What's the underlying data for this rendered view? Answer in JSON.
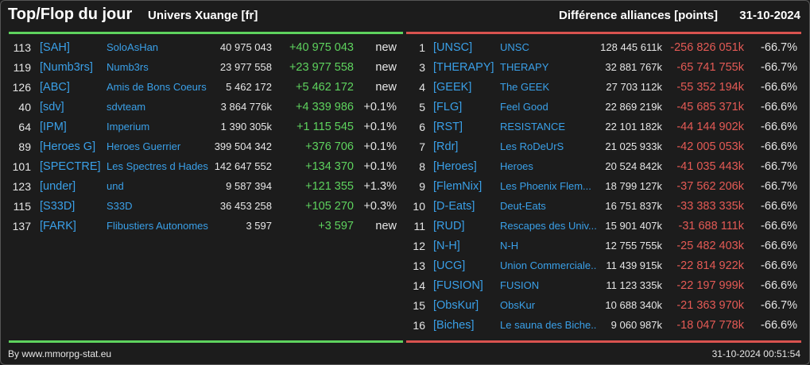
{
  "header": {
    "title": "Top/Flop du jour",
    "universe": "Univers Xuange [fr]",
    "subtitle": "Différence alliances [points]",
    "date": "31-10-2024"
  },
  "colors": {
    "top_accent": "#5ed35e",
    "flop_accent": "#d9534f",
    "link": "#3aa0e8"
  },
  "top": [
    {
      "rank": "113",
      "tag": "[SAH]",
      "name": "SoloAsHan",
      "points": "40 975 043",
      "diff": "+40 975 043",
      "pct": "new"
    },
    {
      "rank": "119",
      "tag": "[Numb3rs]",
      "name": "Numb3rs",
      "points": "23 977 558",
      "diff": "+23 977 558",
      "pct": "new"
    },
    {
      "rank": "126",
      "tag": "[ABC]",
      "name": "Amis de Bons Coeurs",
      "points": "5 462 172",
      "diff": "+5 462 172",
      "pct": "new"
    },
    {
      "rank": "40",
      "tag": "[sdv]",
      "name": "sdvteam",
      "points": "3 864 776k",
      "diff": "+4 339 986",
      "pct": "+0.1%"
    },
    {
      "rank": "64",
      "tag": "[IPM]",
      "name": "Imperium",
      "points": "1 390 305k",
      "diff": "+1 115 545",
      "pct": "+0.1%"
    },
    {
      "rank": "89",
      "tag": "[Heroes G]",
      "name": "Heroes Guerrier",
      "points": "399 504 342",
      "diff": "+376 706",
      "pct": "+0.1%"
    },
    {
      "rank": "101",
      "tag": "[SPECTRE]",
      "name": "Les Spectres d Hades",
      "points": "142 647 552",
      "diff": "+134 370",
      "pct": "+0.1%"
    },
    {
      "rank": "123",
      "tag": "[under]",
      "name": "und",
      "points": "9 587 394",
      "diff": "+121 355",
      "pct": "+1.3%"
    },
    {
      "rank": "115",
      "tag": "[S33D]",
      "name": "S33D",
      "points": "36 453 258",
      "diff": "+105 270",
      "pct": "+0.3%"
    },
    {
      "rank": "137",
      "tag": "[FARK]",
      "name": "Flibustiers Autonomes",
      "points": "3 597",
      "diff": "+3 597",
      "pct": "new"
    }
  ],
  "flop": [
    {
      "rank": "1",
      "tag": "[UNSC]",
      "name": "UNSC",
      "points": "128 445 611k",
      "diff": "-256 826 051k",
      "pct": "-66.7%"
    },
    {
      "rank": "3",
      "tag": "[THERAPY]",
      "name": "THERAPY",
      "points": "32 881 767k",
      "diff": "-65 741 755k",
      "pct": "-66.7%"
    },
    {
      "rank": "4",
      "tag": "[GEEK]",
      "name": "The GEEK",
      "points": "27 703 112k",
      "diff": "-55 352 194k",
      "pct": "-66.6%"
    },
    {
      "rank": "5",
      "tag": "[FLG]",
      "name": "Feel Good",
      "points": "22 869 219k",
      "diff": "-45 685 371k",
      "pct": "-66.6%"
    },
    {
      "rank": "6",
      "tag": "[RST]",
      "name": "RESISTANCE",
      "points": "22 101 182k",
      "diff": "-44 144 902k",
      "pct": "-66.6%"
    },
    {
      "rank": "7",
      "tag": "[Rdr]",
      "name": "Les RoDeUrS",
      "points": "21 025 933k",
      "diff": "-42 005 053k",
      "pct": "-66.6%"
    },
    {
      "rank": "8",
      "tag": "[Heroes]",
      "name": "Heroes",
      "points": "20 524 842k",
      "diff": "-41 035 443k",
      "pct": "-66.7%"
    },
    {
      "rank": "9",
      "tag": "[FlemNix]",
      "name": "Les Phoenix Flem...",
      "points": "18 799 127k",
      "diff": "-37 562 206k",
      "pct": "-66.7%"
    },
    {
      "rank": "10",
      "tag": "[D-Eats]",
      "name": "Deut-Eats",
      "points": "16 751 837k",
      "diff": "-33 383 335k",
      "pct": "-66.6%"
    },
    {
      "rank": "11",
      "tag": "[RUD]",
      "name": "Rescapes des Univ...",
      "points": "15 901 407k",
      "diff": "-31 688 111k",
      "pct": "-66.6%"
    },
    {
      "rank": "12",
      "tag": "[N-H]",
      "name": "N-H",
      "points": "12 755 755k",
      "diff": "-25 482 403k",
      "pct": "-66.6%"
    },
    {
      "rank": "13",
      "tag": "[UCG]",
      "name": "Union Commerciale...",
      "points": "11 439 915k",
      "diff": "-22 814 922k",
      "pct": "-66.6%"
    },
    {
      "rank": "14",
      "tag": "[FUSION]",
      "name": "FUSION",
      "points": "11 123 335k",
      "diff": "-22 197 999k",
      "pct": "-66.6%"
    },
    {
      "rank": "15",
      "tag": "[ObsKur]",
      "name": "ObsKur",
      "points": "10 688 340k",
      "diff": "-21 363 970k",
      "pct": "-66.7%"
    },
    {
      "rank": "16",
      "tag": "[Biches]",
      "name": "Le sauna des Biche...",
      "points": "9 060 987k",
      "diff": "-18 047 778k",
      "pct": "-66.6%"
    }
  ],
  "footer": {
    "credit": "By www.mmorpg-stat.eu",
    "timestamp": "31-10-2024 00:51:54"
  }
}
